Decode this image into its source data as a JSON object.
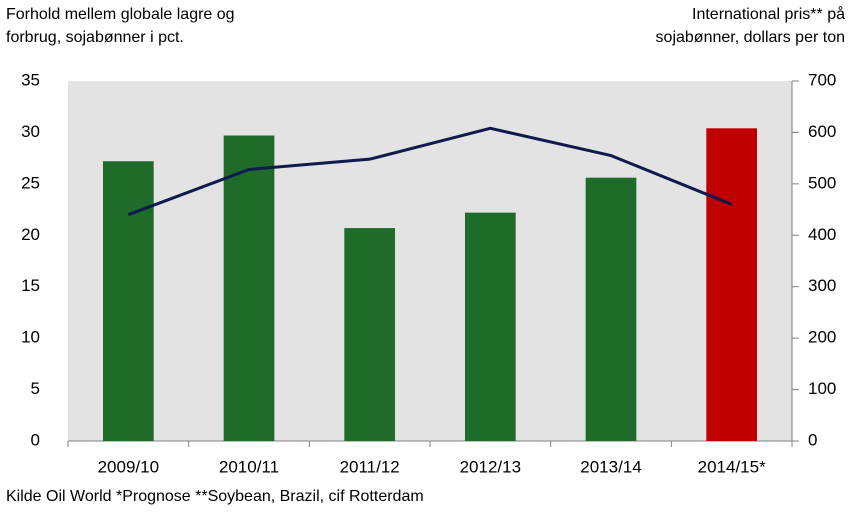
{
  "chart_data": {
    "type": "bar_line",
    "y_label": [
      "Forhold mellem globale lagre og",
      "forbrug, sojabønner i pct."
    ],
    "y2_label": [
      "International pris** på",
      "sojabønner, dollars per ton"
    ],
    "footnote": "Kilde Oil World *Prognose **Soybean, Brazil, cif Rotterdam",
    "categories": [
      "2009/10",
      "2010/11",
      "2011/12",
      "2012/13",
      "2013/14",
      "2014/15*"
    ],
    "series": [
      {
        "type": "bar",
        "colors": [
          "#1e6b2a",
          "#1e6b2a",
          "#1e6b2a",
          "#1e6b2a",
          "#1e6b2a",
          "#c00000"
        ],
        "values": [
          27.2,
          29.7,
          20.7,
          22.2,
          25.6,
          30.4
        ]
      },
      {
        "type": "line",
        "axis": "y2",
        "color": "#0f1a4d",
        "values": [
          440,
          528,
          548,
          608,
          555,
          460
        ]
      }
    ],
    "ylim": [
      0,
      35
    ],
    "yticks": [
      0,
      5,
      10,
      15,
      20,
      25,
      30,
      35
    ],
    "y2lim": [
      0,
      700
    ],
    "y2ticks": [
      0,
      100,
      200,
      300,
      400,
      500,
      600,
      700
    ],
    "plot_background": "#e3e3e3"
  }
}
